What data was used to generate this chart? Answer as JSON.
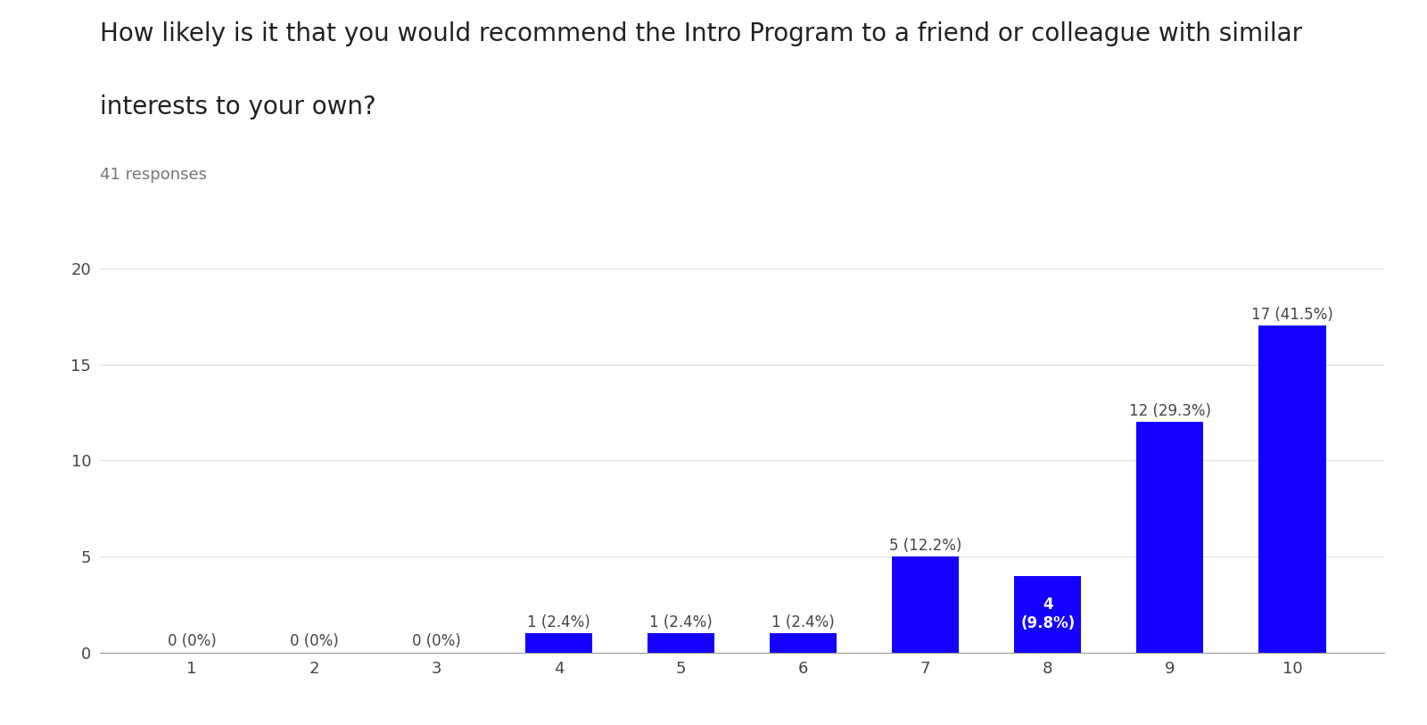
{
  "title_line1": "How likely is it that you would recommend the Intro Program to a friend or colleague with similar",
  "title_line2": "interests to your own?",
  "subtitle": "41 responses",
  "categories": [
    1,
    2,
    3,
    4,
    5,
    6,
    7,
    8,
    9,
    10
  ],
  "values": [
    0,
    0,
    0,
    1,
    1,
    1,
    5,
    4,
    12,
    17
  ],
  "bar_color": "#1500ff",
  "labels": [
    "0 (0%)",
    "0 (0%)",
    "0 (0%)",
    "1 (2.4%)",
    "1 (2.4%)",
    "1 (2.4%)",
    "5 (12.2%)",
    "4\n(9.8%)",
    "12 (29.3%)",
    "17 (41.5%)"
  ],
  "label_colors": [
    "#444444",
    "#444444",
    "#444444",
    "#444444",
    "#444444",
    "#444444",
    "#444444",
    "#ffffff",
    "#444444",
    "#444444"
  ],
  "label_inside": [
    false,
    false,
    false,
    false,
    false,
    false,
    false,
    true,
    false,
    false
  ],
  "ylim": [
    0,
    20
  ],
  "yticks": [
    0,
    5,
    10,
    15,
    20
  ],
  "background_color": "#ffffff",
  "title_fontsize": 20,
  "subtitle_fontsize": 13,
  "label_fontsize": 12,
  "tick_fontsize": 13,
  "grid_color": "#dddddd",
  "bar_width": 0.55
}
